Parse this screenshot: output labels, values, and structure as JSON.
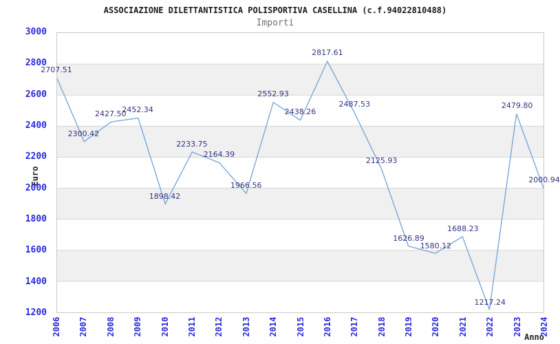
{
  "header": {
    "title": "ASSOCIAZIONE DILETTANTISTICA POLISPORTIVA CASELLINA (c.f.94022810488)",
    "subtitle": "Importi"
  },
  "chart_data": {
    "type": "line",
    "title": "ASSOCIAZIONE DILETTANTISTICA POLISPORTIVA CASELLINA (c.f.94022810488)",
    "subtitle": "Importi",
    "xlabel": "Anno",
    "ylabel": "Euro",
    "x": [
      2006,
      2007,
      2008,
      2009,
      2010,
      2011,
      2012,
      2013,
      2014,
      2015,
      2016,
      2017,
      2018,
      2019,
      2020,
      2021,
      2022,
      2023,
      2024
    ],
    "values": [
      2707.51,
      2300.42,
      2427.5,
      2452.34,
      1898.42,
      2233.75,
      2164.39,
      1966.56,
      2552.93,
      2438.26,
      2817.61,
      2487.53,
      2125.93,
      1626.89,
      1580.12,
      1688.23,
      1217.24,
      2479.8,
      2000.94
    ],
    "point_labels": [
      "2707.51",
      "2300.42",
      "2427.50",
      "2452.34",
      "1898.42",
      "2233.75",
      "2164.39",
      "1966.56",
      "2552.93",
      "2438.26",
      "2817.61",
      "2487.53",
      "2125.93",
      "1626.89",
      "1580.12",
      "1688.23",
      "1217.24",
      "2479.80",
      "2000.94"
    ],
    "ylim": [
      1200,
      3000
    ],
    "ytick_step": 200,
    "yticks": [
      3000,
      2800,
      2600,
      2400,
      2200,
      2000,
      1800,
      1600,
      1400,
      1200
    ],
    "grid": true,
    "legend_position": "none",
    "colors": {
      "band_fill": "#f0f0f0",
      "gridline": "#d6d6d6",
      "plot_border": "#c9c9c9",
      "line": "#7aa7da",
      "axis_tick_text": "#2929dd",
      "point_label_text": "#333380",
      "title_text": "#1a1a1a",
      "subtitle_text": "#6e6e6e"
    }
  }
}
